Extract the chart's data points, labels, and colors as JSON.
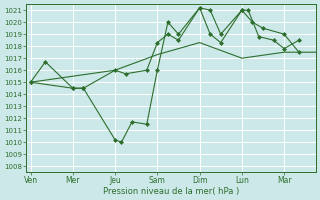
{
  "background_color": "#cce8e8",
  "grid_color": "#ffffff",
  "line_color": "#2d6e2d",
  "xlabel": "Pression niveau de la mer( hPa )",
  "ylim": [
    1007.5,
    1021.5
  ],
  "yticks": [
    1008,
    1009,
    1010,
    1011,
    1012,
    1013,
    1014,
    1015,
    1016,
    1017,
    1018,
    1019,
    1020,
    1021
  ],
  "xtick_labels": [
    "Ven",
    "Mer",
    "Jeu",
    "Sam",
    "Dim",
    "Lun",
    "Mar"
  ],
  "xtick_positions": [
    0,
    2,
    4,
    6,
    8,
    10,
    12
  ],
  "xlim": [
    -0.2,
    13.5
  ],
  "series1": {
    "x": [
      0,
      0.7,
      2,
      2.5,
      4,
      4.3,
      4.8,
      5.5,
      6,
      6.5,
      7,
      8,
      8.5,
      9,
      10,
      10.3,
      10.8,
      11.5,
      12,
      12.7
    ],
    "y": [
      1015,
      1016.7,
      1014.5,
      1014.5,
      1010.2,
      1010.0,
      1011.7,
      1011.5,
      1016.0,
      1020.0,
      1019.0,
      1021.2,
      1021.0,
      1019.0,
      1021.0,
      1021.0,
      1018.8,
      1018.5,
      1017.8,
      1018.5
    ]
  },
  "series2": {
    "x": [
      0,
      2,
      2.5,
      4,
      4.5,
      5.5,
      6,
      6.5,
      7,
      8,
      8.5,
      9,
      10,
      10.5,
      11.0,
      12,
      12.7
    ],
    "y": [
      1015,
      1014.5,
      1014.5,
      1016.0,
      1015.7,
      1016.0,
      1018.3,
      1019.0,
      1018.5,
      1021.2,
      1019.0,
      1018.3,
      1021.0,
      1020.0,
      1019.5,
      1019.0,
      1017.5
    ]
  },
  "series3": {
    "x": [
      0,
      2,
      4,
      6,
      8,
      10,
      12,
      13.5
    ],
    "y": [
      1015.0,
      1015.5,
      1016.0,
      1017.3,
      1018.3,
      1017.0,
      1017.5,
      1017.5
    ]
  },
  "figsize": [
    3.2,
    2.0
  ],
  "dpi": 100
}
